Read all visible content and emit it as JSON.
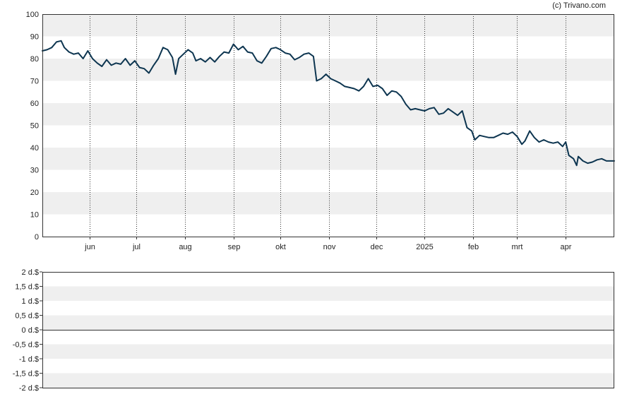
{
  "credit": "(c) Trivano.com",
  "colors": {
    "line": "#0d3550",
    "band": "#efefef",
    "frame": "#333333",
    "grid": "#333333",
    "text": "#222222"
  },
  "chart_data": [
    {
      "type": "line",
      "grid": true,
      "ylim": [
        0,
        100
      ],
      "yticks": [
        0,
        10,
        20,
        30,
        40,
        50,
        60,
        70,
        80,
        90,
        100
      ],
      "xlim": [
        "2024-05-02",
        "2025-05-02"
      ],
      "xticks": [
        {
          "date": "2024-06-01",
          "label": "jun"
        },
        {
          "date": "2024-07-01",
          "label": "jul"
        },
        {
          "date": "2024-08-01",
          "label": "aug"
        },
        {
          "date": "2024-09-01",
          "label": "sep"
        },
        {
          "date": "2024-10-01",
          "label": "okt"
        },
        {
          "date": "2024-11-01",
          "label": "nov"
        },
        {
          "date": "2024-12-01",
          "label": "dec"
        },
        {
          "date": "2025-01-01",
          "label": "2025"
        },
        {
          "date": "2025-02-01",
          "label": "feb"
        },
        {
          "date": "2025-03-01",
          "label": "mrt"
        },
        {
          "date": "2025-04-01",
          "label": "apr"
        }
      ],
      "series": [
        {
          "points": [
            [
              "2024-05-02",
              83.5
            ],
            [
              "2024-05-05",
              84
            ],
            [
              "2024-05-08",
              85
            ],
            [
              "2024-05-11",
              87.5
            ],
            [
              "2024-05-14",
              88
            ],
            [
              "2024-05-16",
              85
            ],
            [
              "2024-05-19",
              83
            ],
            [
              "2024-05-22",
              82
            ],
            [
              "2024-05-25",
              82.5
            ],
            [
              "2024-05-28",
              80
            ],
            [
              "2024-05-31",
              83.5
            ],
            [
              "2024-06-03",
              80
            ],
            [
              "2024-06-06",
              78
            ],
            [
              "2024-06-09",
              76.5
            ],
            [
              "2024-06-12",
              79.5
            ],
            [
              "2024-06-15",
              77
            ],
            [
              "2024-06-18",
              78
            ],
            [
              "2024-06-21",
              77.5
            ],
            [
              "2024-06-24",
              80
            ],
            [
              "2024-06-27",
              77
            ],
            [
              "2024-06-30",
              79
            ],
            [
              "2024-07-03",
              76
            ],
            [
              "2024-07-06",
              75.5
            ],
            [
              "2024-07-09",
              73.5
            ],
            [
              "2024-07-12",
              77
            ],
            [
              "2024-07-15",
              80
            ],
            [
              "2024-07-18",
              85
            ],
            [
              "2024-07-21",
              84
            ],
            [
              "2024-07-24",
              80.5
            ],
            [
              "2024-07-26",
              73
            ],
            [
              "2024-07-28",
              80
            ],
            [
              "2024-07-31",
              82
            ],
            [
              "2024-08-03",
              84
            ],
            [
              "2024-08-06",
              82.5
            ],
            [
              "2024-08-08",
              79
            ],
            [
              "2024-08-11",
              80
            ],
            [
              "2024-08-14",
              78.5
            ],
            [
              "2024-08-17",
              80.5
            ],
            [
              "2024-08-20",
              78.5
            ],
            [
              "2024-08-23",
              81
            ],
            [
              "2024-08-26",
              83
            ],
            [
              "2024-08-29",
              82.5
            ],
            [
              "2024-09-01",
              86.5
            ],
            [
              "2024-09-04",
              84
            ],
            [
              "2024-09-07",
              85.5
            ],
            [
              "2024-09-10",
              83
            ],
            [
              "2024-09-13",
              82.5
            ],
            [
              "2024-09-16",
              79
            ],
            [
              "2024-09-19",
              78
            ],
            [
              "2024-09-22",
              81
            ],
            [
              "2024-09-25",
              84.5
            ],
            [
              "2024-09-28",
              85
            ],
            [
              "2024-10-01",
              84
            ],
            [
              "2024-10-04",
              82.5
            ],
            [
              "2024-10-07",
              82
            ],
            [
              "2024-10-10",
              79.5
            ],
            [
              "2024-10-13",
              80.5
            ],
            [
              "2024-10-16",
              82
            ],
            [
              "2024-10-19",
              82.5
            ],
            [
              "2024-10-22",
              81
            ],
            [
              "2024-10-24",
              70
            ],
            [
              "2024-10-27",
              71
            ],
            [
              "2024-10-30",
              73
            ],
            [
              "2024-11-02",
              71
            ],
            [
              "2024-11-05",
              70
            ],
            [
              "2024-11-08",
              69
            ],
            [
              "2024-11-11",
              67.5
            ],
            [
              "2024-11-14",
              67
            ],
            [
              "2024-11-17",
              66.5
            ],
            [
              "2024-11-20",
              65.5
            ],
            [
              "2024-11-23",
              67.5
            ],
            [
              "2024-11-26",
              71
            ],
            [
              "2024-11-29",
              67.5
            ],
            [
              "2024-12-02",
              68
            ],
            [
              "2024-12-05",
              66.5
            ],
            [
              "2024-12-08",
              63.5
            ],
            [
              "2024-12-11",
              65.5
            ],
            [
              "2024-12-14",
              65
            ],
            [
              "2024-12-17",
              63
            ],
            [
              "2024-12-20",
              59.5
            ],
            [
              "2024-12-23",
              57
            ],
            [
              "2024-12-26",
              57.5
            ],
            [
              "2024-12-29",
              57
            ],
            [
              "2025-01-01",
              56.5
            ],
            [
              "2025-01-04",
              57.5
            ],
            [
              "2025-01-07",
              58
            ],
            [
              "2025-01-10",
              55
            ],
            [
              "2025-01-13",
              55.5
            ],
            [
              "2025-01-16",
              57.5
            ],
            [
              "2025-01-19",
              56
            ],
            [
              "2025-01-22",
              54.5
            ],
            [
              "2025-01-25",
              56.5
            ],
            [
              "2025-01-28",
              49
            ],
            [
              "2025-01-31",
              47.5
            ],
            [
              "2025-02-02",
              43.5
            ],
            [
              "2025-02-05",
              45.5
            ],
            [
              "2025-02-08",
              45
            ],
            [
              "2025-02-11",
              44.5
            ],
            [
              "2025-02-14",
              44.5
            ],
            [
              "2025-02-17",
              45.5
            ],
            [
              "2025-02-20",
              46.5
            ],
            [
              "2025-02-23",
              46
            ],
            [
              "2025-02-26",
              47
            ],
            [
              "2025-03-01",
              45
            ],
            [
              "2025-03-04",
              41.5
            ],
            [
              "2025-03-06",
              43
            ],
            [
              "2025-03-09",
              47.5
            ],
            [
              "2025-03-12",
              44.5
            ],
            [
              "2025-03-15",
              42.5
            ],
            [
              "2025-03-18",
              43.5
            ],
            [
              "2025-03-21",
              42.5
            ],
            [
              "2025-03-24",
              42
            ],
            [
              "2025-03-27",
              42.5
            ],
            [
              "2025-03-30",
              40.5
            ],
            [
              "2025-04-01",
              42.5
            ],
            [
              "2025-04-03",
              36.5
            ],
            [
              "2025-04-06",
              35
            ],
            [
              "2025-04-08",
              32
            ],
            [
              "2025-04-09",
              36
            ],
            [
              "2025-04-12",
              34
            ],
            [
              "2025-04-15",
              33
            ],
            [
              "2025-04-18",
              33.5
            ],
            [
              "2025-04-21",
              34.5
            ],
            [
              "2025-04-24",
              35
            ],
            [
              "2025-04-27",
              34
            ],
            [
              "2025-05-02",
              34
            ]
          ]
        }
      ]
    },
    {
      "type": "bar",
      "grid": true,
      "ylim": [
        -2,
        2
      ],
      "yticks": [
        {
          "value": 2,
          "label": "2 d.$"
        },
        {
          "value": 1.5,
          "label": "1,5 d.$"
        },
        {
          "value": 1,
          "label": "1 d.$"
        },
        {
          "value": 0.5,
          "label": "0,5 d.$"
        },
        {
          "value": 0,
          "label": "0 d.$"
        },
        {
          "value": -0.5,
          "label": "-0,5 d.$"
        },
        {
          "value": -1,
          "label": "-1 d.$"
        },
        {
          "value": -1.5,
          "label": "-1,5 d.$"
        },
        {
          "value": -2,
          "label": "-2 d.$"
        }
      ],
      "values": []
    }
  ]
}
